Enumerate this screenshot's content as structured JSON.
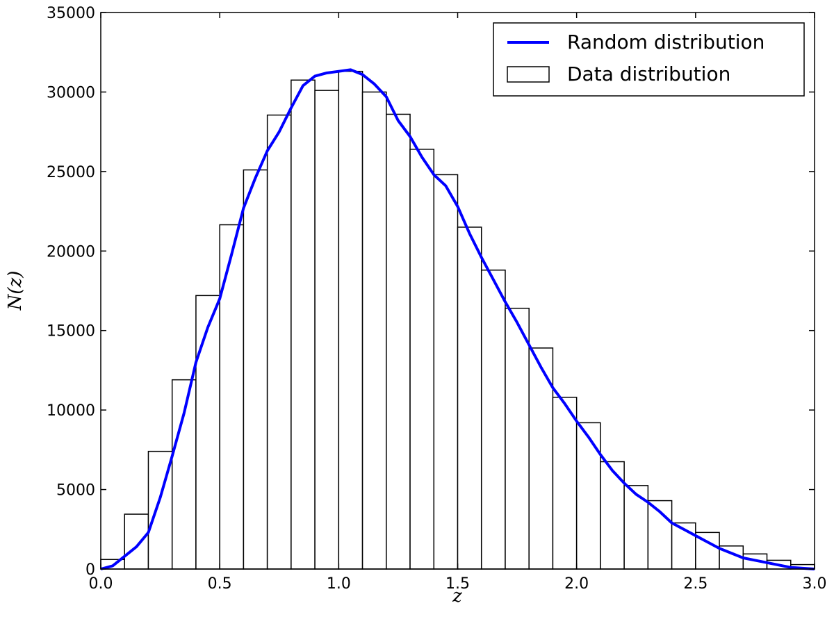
{
  "chart_data": {
    "type": "histogram",
    "xlabel": "z",
    "ylabel": "N(z)",
    "xlim": [
      0,
      3
    ],
    "ylim": [
      0,
      35000
    ],
    "xticks": [
      {
        "value": 0,
        "label": "0.0"
      },
      0.5,
      {
        "value": 1,
        "label": "1.0"
      },
      1.5,
      {
        "value": 2,
        "label": "2.0"
      },
      2.5,
      {
        "value": 3,
        "label": "3.0"
      }
    ],
    "yticks": [
      0,
      5000,
      10000,
      15000,
      20000,
      25000,
      30000,
      35000
    ],
    "legend": "upper right",
    "series": [
      {
        "name": "Random distribution",
        "type": "line",
        "color": "#0000ff",
        "x": [
          0,
          0.05,
          0.1,
          0.15,
          0.2,
          0.25,
          0.3,
          0.35,
          0.4,
          0.45,
          0.5,
          0.55,
          0.6,
          0.65,
          0.7,
          0.75,
          0.8,
          0.85,
          0.9,
          0.95,
          1,
          1.05,
          1.1,
          1.15,
          1.2,
          1.25,
          1.3,
          1.35,
          1.4,
          1.45,
          1.5,
          1.55,
          1.6,
          1.65,
          1.7,
          1.75,
          1.8,
          1.85,
          1.9,
          1.95,
          2,
          2.05,
          2.1,
          2.15,
          2.2,
          2.25,
          2.3,
          2.35,
          2.4,
          2.45,
          2.5,
          2.55,
          2.6,
          2.65,
          2.7,
          2.75,
          2.8,
          2.85,
          2.9,
          2.95,
          3
        ],
        "values": [
          0,
          200,
          800,
          1400,
          2300,
          4500,
          7100,
          9800,
          13000,
          15200,
          17000,
          19800,
          22700,
          24600,
          26300,
          27500,
          29000,
          30400,
          31000,
          31200,
          31300,
          31400,
          31100,
          30500,
          29700,
          28200,
          27200,
          25900,
          24800,
          24100,
          22800,
          21100,
          19600,
          18200,
          16800,
          15500,
          14100,
          12700,
          11400,
          10400,
          9300,
          8300,
          7200,
          6200,
          5400,
          4700,
          4200,
          3600,
          2900,
          2500,
          2100,
          1700,
          1300,
          1000,
          700,
          550,
          400,
          250,
          100,
          50,
          0
        ]
      },
      {
        "name": "Data distribution",
        "type": "histogram",
        "color": "#ffffff",
        "bins": [
          0,
          0.1,
          0.2,
          0.3,
          0.4,
          0.5,
          0.6,
          0.7,
          0.8,
          0.9,
          1,
          1.1,
          1.2,
          1.3,
          1.4,
          1.5,
          1.6,
          1.7,
          1.8,
          1.9,
          2,
          2.1,
          2.2,
          2.3,
          2.4,
          2.5,
          2.6,
          2.7,
          2.8,
          2.9,
          3
        ],
        "values": [
          600,
          3450,
          7400,
          11900,
          17200,
          21650,
          25100,
          28550,
          30750,
          30100,
          31300,
          30000,
          28600,
          26400,
          24800,
          21500,
          18800,
          16400,
          13900,
          10800,
          9200,
          6750,
          5250,
          4300,
          2900,
          2300,
          1450,
          950,
          550,
          280
        ]
      }
    ]
  }
}
